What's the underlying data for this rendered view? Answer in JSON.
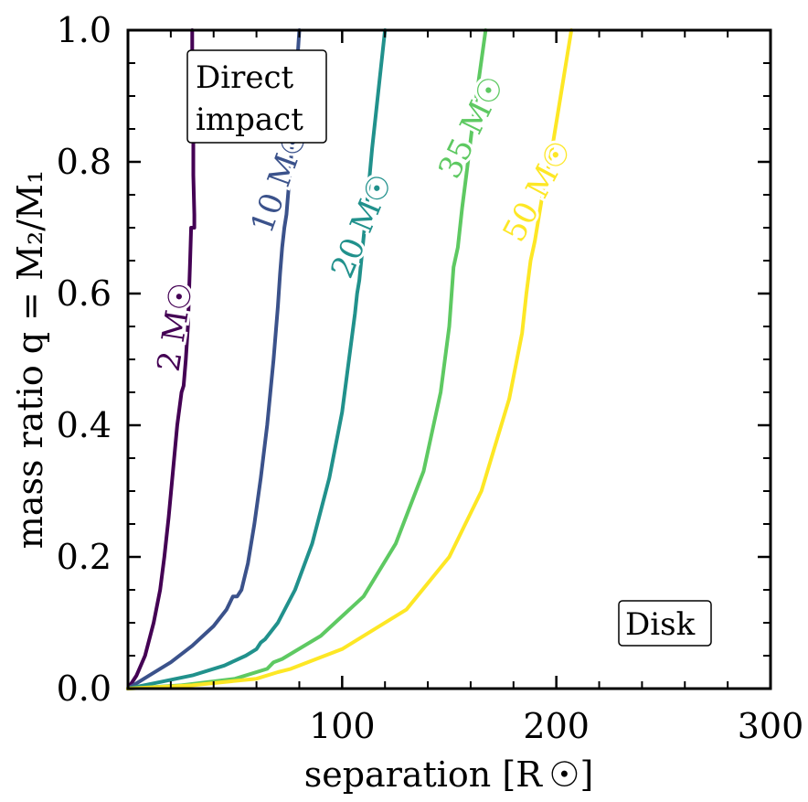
{
  "chart_data": {
    "type": "line",
    "xlabel": "separation [R ☉]",
    "ylabel": "mass ratio q = M₂/M₁",
    "xlim": [
      0,
      300
    ],
    "ylim": [
      0,
      1.0
    ],
    "x_ticks": [
      "100",
      "200",
      "300"
    ],
    "y_ticks": [
      "0.0",
      "0.2",
      "0.4",
      "0.6",
      "0.8",
      "1.0"
    ],
    "grid": false,
    "series": [
      {
        "name": "2 M☉",
        "color": "#440154",
        "points": [
          [
            0,
            0
          ],
          [
            4,
            0.02
          ],
          [
            8,
            0.05
          ],
          [
            12,
            0.1
          ],
          [
            15,
            0.15
          ],
          [
            17,
            0.2
          ],
          [
            19,
            0.26
          ],
          [
            21,
            0.33
          ],
          [
            23,
            0.4
          ],
          [
            25,
            0.45
          ],
          [
            26,
            0.46
          ],
          [
            27,
            0.5
          ],
          [
            28,
            0.55
          ],
          [
            28.5,
            0.6
          ],
          [
            29,
            0.65
          ],
          [
            29.5,
            0.7
          ],
          [
            31,
            0.7
          ],
          [
            31,
            0.72
          ],
          [
            30.5,
            0.78
          ],
          [
            30.5,
            0.85
          ],
          [
            30,
            0.9
          ],
          [
            30,
            0.96
          ],
          [
            30,
            1.0
          ]
        ]
      },
      {
        "name": "10 M☉",
        "color": "#3b528b",
        "points": [
          [
            0,
            0
          ],
          [
            10,
            0.02
          ],
          [
            20,
            0.04
          ],
          [
            30,
            0.065
          ],
          [
            40,
            0.095
          ],
          [
            46,
            0.12
          ],
          [
            49,
            0.14
          ],
          [
            51,
            0.14
          ],
          [
            53,
            0.15
          ],
          [
            56,
            0.19
          ],
          [
            59,
            0.25
          ],
          [
            62,
            0.32
          ],
          [
            65,
            0.4
          ],
          [
            68,
            0.5
          ],
          [
            70,
            0.58
          ],
          [
            71,
            0.63
          ],
          [
            72,
            0.67
          ],
          [
            73,
            0.7
          ],
          [
            74,
            0.72
          ],
          [
            76,
            0.8
          ],
          [
            78,
            0.88
          ],
          [
            79,
            0.95
          ],
          [
            80,
            1.0
          ]
        ]
      },
      {
        "name": "20 M☉",
        "color": "#21918c",
        "points": [
          [
            0,
            0
          ],
          [
            15,
            0.01
          ],
          [
            30,
            0.02
          ],
          [
            45,
            0.035
          ],
          [
            55,
            0.05
          ],
          [
            60,
            0.06
          ],
          [
            62,
            0.07
          ],
          [
            64,
            0.075
          ],
          [
            70,
            0.1
          ],
          [
            78,
            0.15
          ],
          [
            86,
            0.22
          ],
          [
            94,
            0.32
          ],
          [
            100,
            0.42
          ],
          [
            104,
            0.52
          ],
          [
            106,
            0.57
          ],
          [
            107,
            0.6
          ],
          [
            108,
            0.62
          ],
          [
            112,
            0.75
          ],
          [
            114,
            0.82
          ],
          [
            116,
            0.88
          ],
          [
            118,
            0.94
          ],
          [
            120,
            1.0
          ]
        ]
      },
      {
        "name": "35 M☉",
        "color": "#5ec962",
        "points": [
          [
            0,
            0
          ],
          [
            25,
            0.005
          ],
          [
            50,
            0.015
          ],
          [
            65,
            0.03
          ],
          [
            68,
            0.04
          ],
          [
            72,
            0.045
          ],
          [
            90,
            0.08
          ],
          [
            110,
            0.14
          ],
          [
            125,
            0.22
          ],
          [
            138,
            0.33
          ],
          [
            146,
            0.45
          ],
          [
            150,
            0.55
          ],
          [
            152,
            0.64
          ],
          [
            154,
            0.67
          ],
          [
            156,
            0.73
          ],
          [
            158,
            0.78
          ],
          [
            161,
            0.86
          ],
          [
            164,
            0.93
          ],
          [
            167,
            1.0
          ]
        ]
      },
      {
        "name": "50 M☉",
        "color": "#fde725",
        "points": [
          [
            0,
            0
          ],
          [
            30,
            0.005
          ],
          [
            60,
            0.015
          ],
          [
            70,
            0.025
          ],
          [
            76,
            0.03
          ],
          [
            100,
            0.06
          ],
          [
            130,
            0.12
          ],
          [
            150,
            0.2
          ],
          [
            165,
            0.3
          ],
          [
            178,
            0.44
          ],
          [
            184,
            0.54
          ],
          [
            186,
            0.6
          ],
          [
            188,
            0.65
          ],
          [
            190,
            0.68
          ],
          [
            193,
            0.74
          ],
          [
            198,
            0.82
          ],
          [
            202,
            0.9
          ],
          [
            205,
            0.96
          ],
          [
            207,
            1.0
          ]
        ]
      }
    ],
    "annotations": [
      {
        "text_line1": "Direct",
        "text_line2": "impact",
        "position": "top-left"
      },
      {
        "text": "Disk",
        "position": "bottom-right"
      }
    ]
  }
}
